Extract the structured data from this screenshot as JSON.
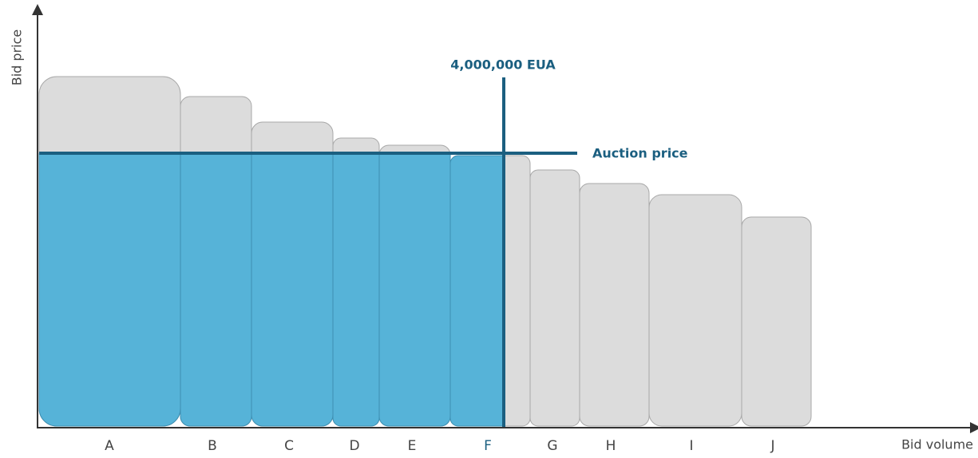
{
  "y_axis_label": "Bid price",
  "x_axis_label": "Bid volume",
  "volume_label": "4,000,000 EUA",
  "price_label": "Auction price",
  "bids": [
    "A",
    "B",
    "C",
    "D",
    "E",
    "F",
    "G",
    "H",
    "I",
    "J"
  ]
}
